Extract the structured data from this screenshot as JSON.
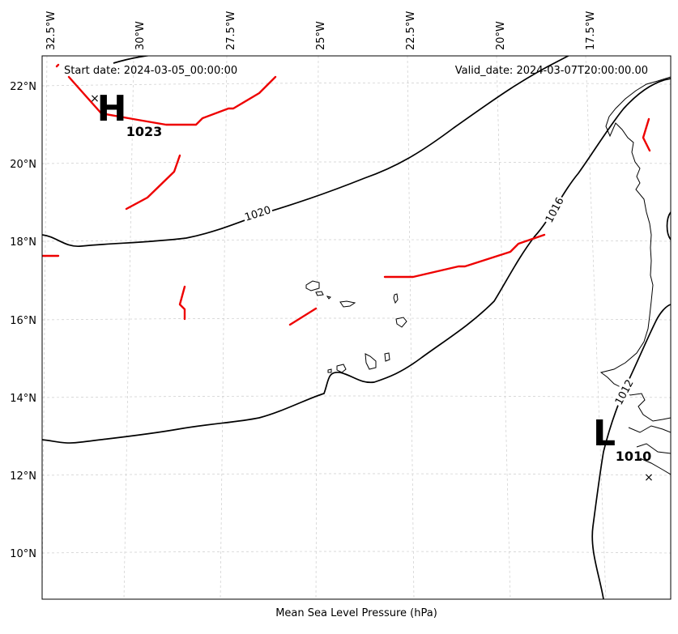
{
  "map": {
    "longitude_labels": [
      "32.5°W",
      "30°W",
      "27.5°W",
      "25°W",
      "22.5°W",
      "20°W",
      "17.5°W"
    ],
    "latitude_labels": [
      "22°N",
      "20°N",
      "18°N",
      "16°N",
      "14°N",
      "12°N",
      "10°N"
    ],
    "start_date": "Start date: 2024-03-05_00:00:00",
    "valid_date": "Valid_date: 2024-03-07T20:00:00.00",
    "caption": "Mean Sea Level Pressure (hPa)",
    "isobar_labels": [
      "1020",
      "1016",
      "1012"
    ],
    "high": {
      "letter": "H",
      "value": "1023"
    },
    "low": {
      "letter": "L",
      "value": "1010"
    },
    "colors": {
      "isobar": "#000000",
      "front": "#ee0000",
      "grid": "#cccccc",
      "coast": "#000000"
    }
  }
}
